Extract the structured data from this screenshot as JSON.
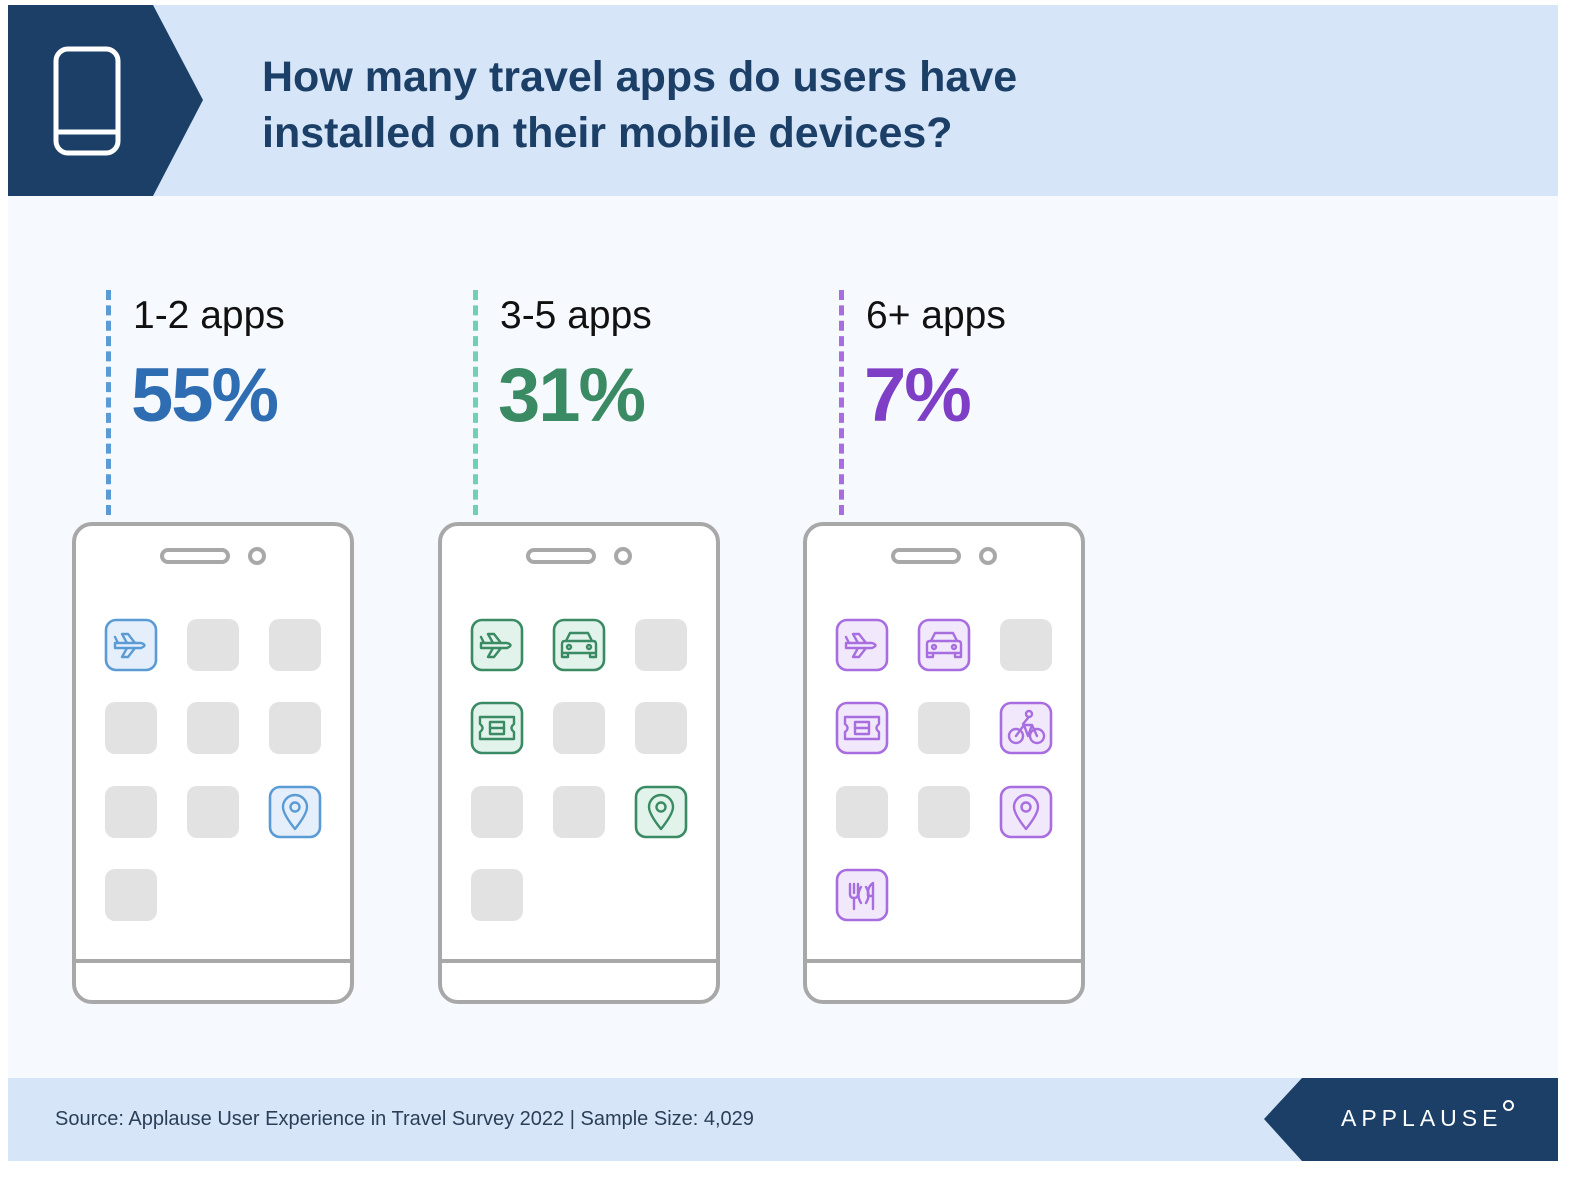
{
  "header": {
    "icon": "smartphone-icon",
    "title_line1": "How many travel apps do users have",
    "title_line2": "installed on their mobile devices?"
  },
  "colors": {
    "header_bg": "#d6e6f8",
    "header_tab": "#1b3f66",
    "card_bg": "#f6f9fd",
    "placeholder_tile": "#e2e2e2",
    "phone_outline": "#a8a8a8"
  },
  "chart_data": {
    "type": "pictogram",
    "title": "How many travel apps do users have installed on their mobile devices?",
    "categories": [
      "1-2 apps",
      "3-5 apps",
      "6+ apps"
    ],
    "values": [
      55,
      31,
      7
    ],
    "value_labels": [
      "55%",
      "31%",
      "7%"
    ],
    "unit": "%",
    "series_colors": [
      "#2f6db3",
      "#3a8a63",
      "#7e3fc6"
    ],
    "phones": [
      {
        "icons": [
          "plane-icon",
          "blank",
          "blank",
          "blank",
          "blank",
          "blank",
          "blank",
          "blank",
          "map-pin-icon",
          "blank"
        ],
        "color": "#5b9bd5",
        "fill": "#e4effb",
        "dash_color": "#5b9bd5"
      },
      {
        "icons": [
          "plane-icon",
          "car-icon",
          "blank",
          "ticket-icon",
          "blank",
          "blank",
          "blank",
          "blank",
          "map-pin-icon",
          "blank"
        ],
        "color": "#3a8a63",
        "fill": "#e1f3ea",
        "dash_color": "#6fd0b8"
      },
      {
        "icons": [
          "plane-icon",
          "car-icon",
          "blank",
          "ticket-icon",
          "blank",
          "bicycle-icon",
          "blank",
          "blank",
          "map-pin-icon",
          "restaurant-icon"
        ],
        "color": "#a86ee0",
        "fill": "#f1e8fb",
        "dash_color": "#a86ee0"
      }
    ]
  },
  "footer": {
    "source": "Source: Applause User Experience in Travel Survey 2022 | Sample Size: 4,029",
    "logo_text": "APPLAUSE"
  }
}
